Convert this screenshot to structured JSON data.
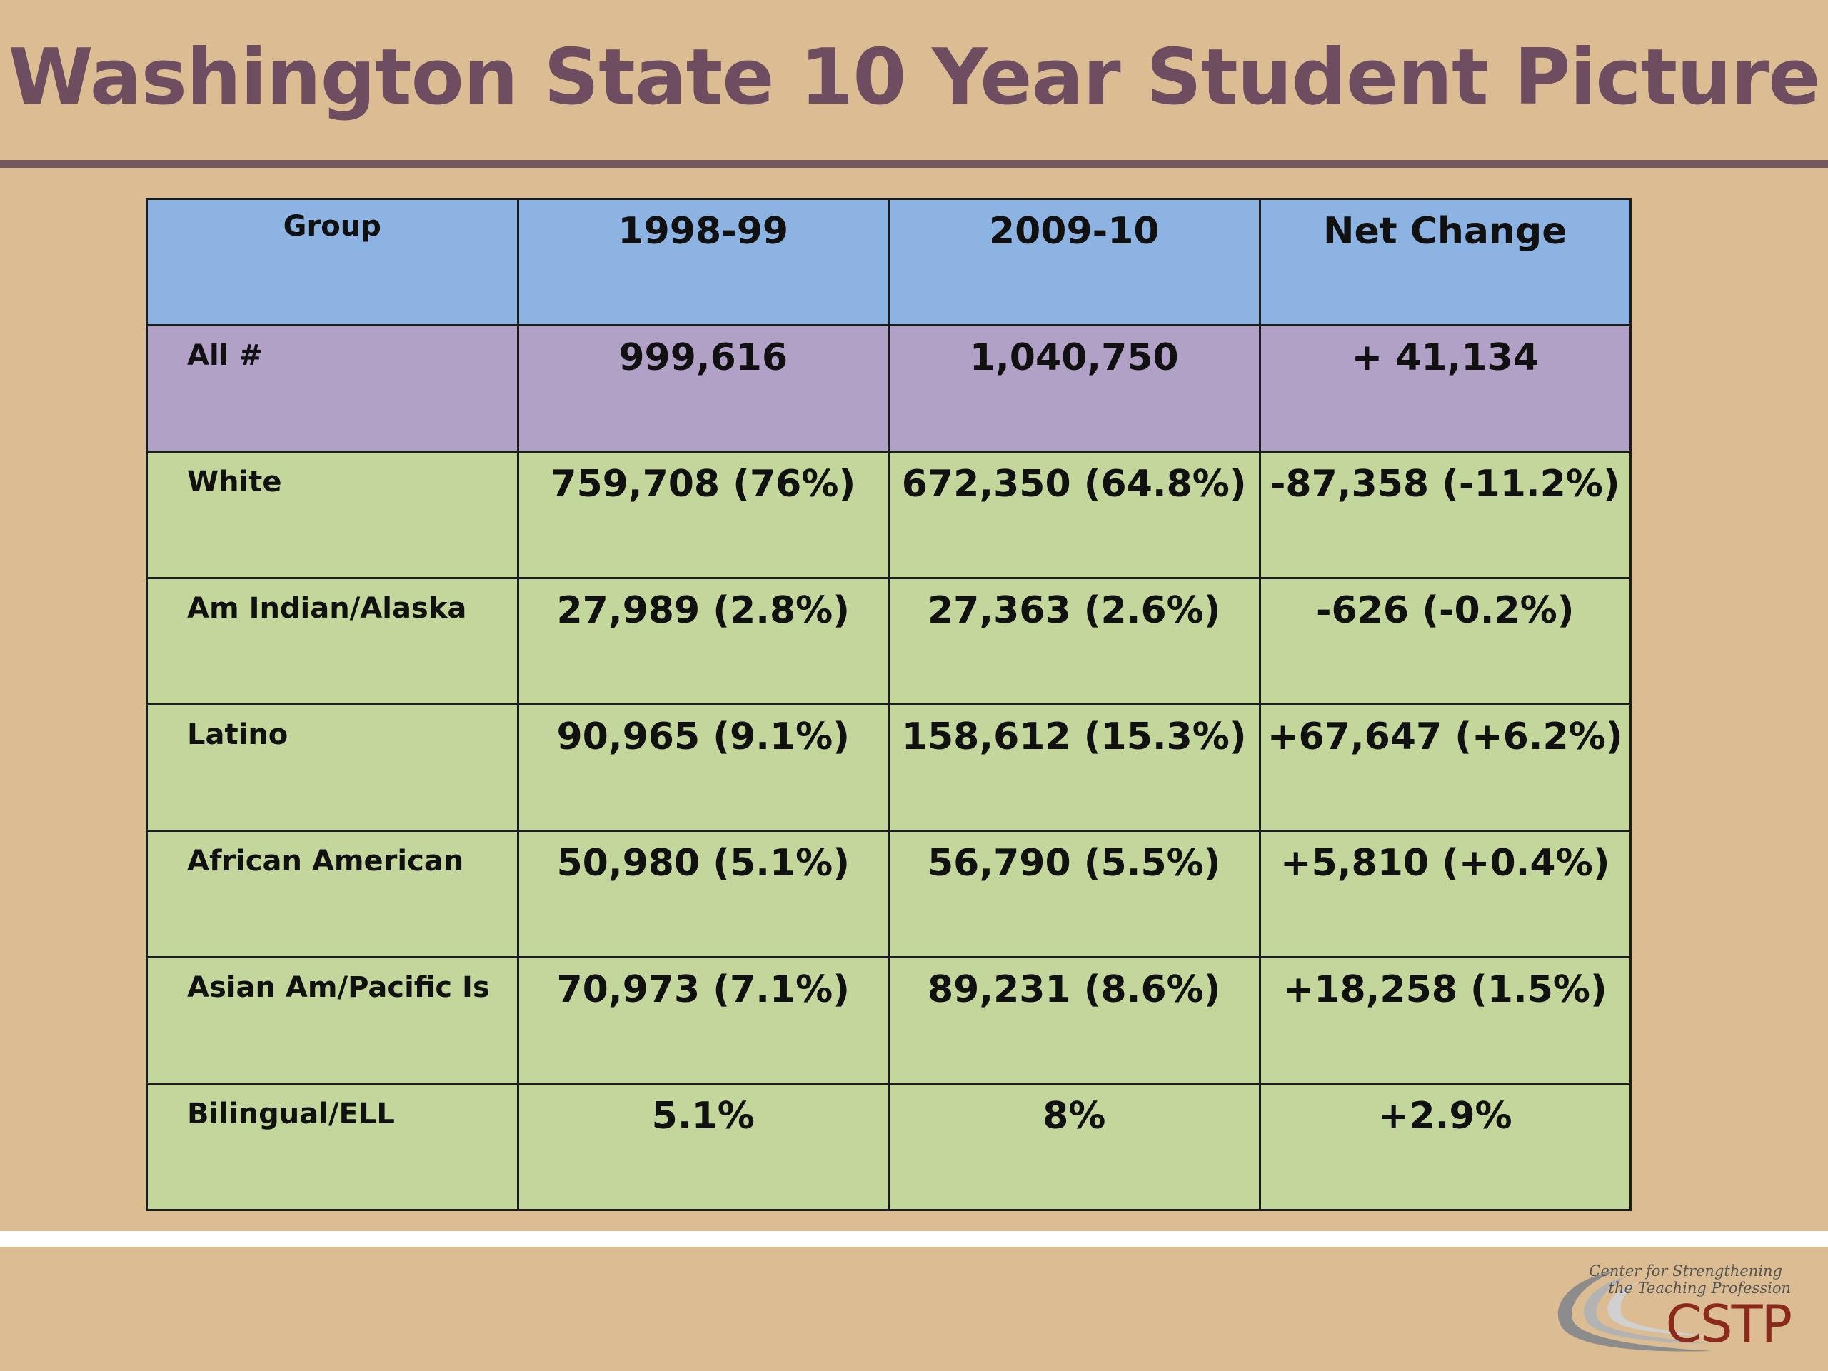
{
  "slide": {
    "title": "Washington State 10 Year Student Picture"
  },
  "table": {
    "headers": [
      "Group",
      "1998-99",
      "2009-10",
      "Net Change"
    ],
    "rows": [
      {
        "group": "All #",
        "y1998": "999,616",
        "y2009": "1,040,750",
        "change": "+ 41,134"
      },
      {
        "group": "White",
        "y1998": "759,708 (76%)",
        "y2009": "672,350 (64.8%)",
        "change": "-87,358 (-11.2%)"
      },
      {
        "group": "Am Indian/Alaska",
        "y1998": "27,989 (2.8%)",
        "y2009": "27,363 (2.6%)",
        "change": "-626 (-0.2%)"
      },
      {
        "group": "Latino",
        "y1998": "90,965 (9.1%)",
        "y2009": "158,612 (15.3%)",
        "change": "+67,647 (+6.2%)"
      },
      {
        "group": "African American",
        "y1998": "50,980 (5.1%)",
        "y2009": "56,790 (5.5%)",
        "change": "+5,810 (+0.4%)"
      },
      {
        "group": "Asian Am/Pacific Is",
        "y1998": "70,973 (7.1%)",
        "y2009": "89,231 (8.6%)",
        "change": "+18,258 (1.5%)"
      },
      {
        "group": "Bilingual/ELL",
        "y1998": "5.1%",
        "y2009": "8%",
        "change": "+2.9%"
      }
    ]
  },
  "logo": {
    "line1": "Center for Strengthening",
    "line2": "the Teaching Profession",
    "name": "CSTP"
  },
  "colors": {
    "background": "#dcbd93",
    "title": "#6e4d60",
    "header_row": "#8db3e2",
    "total_row": "#b2a1c7",
    "group_rows": "#c3d69b",
    "negative_change": "#f01818",
    "logo_red": "#8a2a1c"
  }
}
